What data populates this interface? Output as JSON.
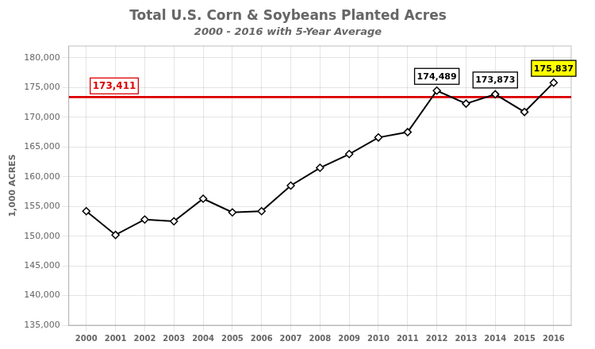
{
  "chart_data": {
    "type": "line",
    "title": "Total U.S. Corn & Soybeans Planted Acres",
    "subtitle": "2000 - 2016 with 5-Year Average",
    "ylabel": "1,000 ACRES",
    "x": [
      2000,
      2001,
      2002,
      2003,
      2004,
      2005,
      2006,
      2007,
      2008,
      2009,
      2010,
      2011,
      2012,
      2013,
      2014,
      2015,
      2016
    ],
    "values": [
      154200,
      150200,
      152800,
      152500,
      156300,
      154000,
      154200,
      158500,
      161500,
      163800,
      166600,
      167500,
      174489,
      172300,
      173873,
      170900,
      175837
    ],
    "color": "#000000",
    "marker": "diamond",
    "xlim": [
      1999.4,
      2016.6
    ],
    "xticks": [
      2000,
      2001,
      2002,
      2003,
      2004,
      2005,
      2006,
      2007,
      2008,
      2009,
      2010,
      2011,
      2012,
      2013,
      2014,
      2015,
      2016
    ],
    "ylim": [
      135000,
      182000
    ],
    "yticks": [
      {
        "value": 135000,
        "label": "135,000"
      },
      {
        "value": 140000,
        "label": "140,000"
      },
      {
        "value": 145000,
        "label": "145,000"
      },
      {
        "value": 150000,
        "label": "150,000"
      },
      {
        "value": 155000,
        "label": "155,000"
      },
      {
        "value": 160000,
        "label": "160,000"
      },
      {
        "value": 165000,
        "label": "165,000"
      },
      {
        "value": 170000,
        "label": "170,000"
      },
      {
        "value": 175000,
        "label": "175,000"
      },
      {
        "value": 180000,
        "label": "180,000"
      }
    ],
    "grid": true,
    "reference_line": {
      "value": 173411,
      "label": "173,411",
      "color": "#dd0000"
    },
    "annotations": [
      {
        "text": "174,489",
        "x": 2012,
        "y": 174489
      },
      {
        "text": "173,873",
        "x": 2014,
        "y": 173873
      },
      {
        "text": "175,837",
        "x": 2016,
        "y": 175837,
        "color": "#ffff00"
      }
    ]
  }
}
